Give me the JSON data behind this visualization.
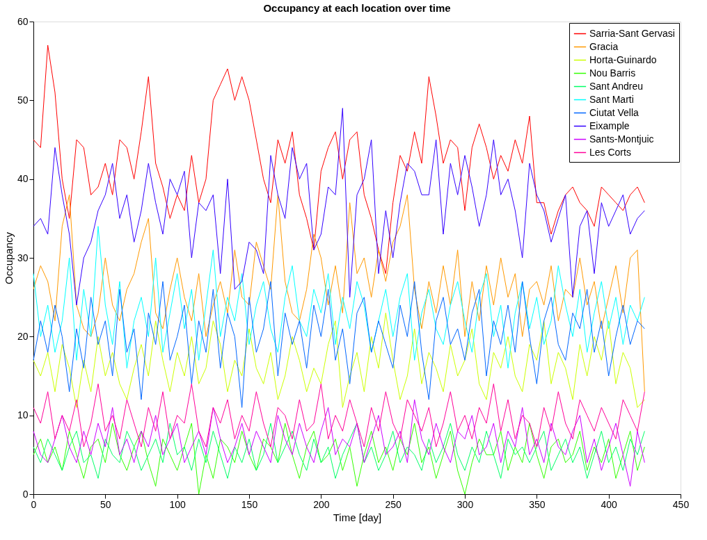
{
  "chart_data": {
    "type": "line",
    "title": "Occupancy at each location over time",
    "xlabel": "Time [day]",
    "ylabel": "Occupancy",
    "x": [
      0,
      5,
      10,
      15,
      20,
      25,
      30,
      35,
      40,
      45,
      50,
      55,
      60,
      65,
      70,
      75,
      80,
      85,
      90,
      95,
      100,
      105,
      110,
      115,
      120,
      125,
      130,
      135,
      140,
      145,
      150,
      155,
      160,
      165,
      170,
      175,
      180,
      185,
      190,
      195,
      200,
      205,
      210,
      215,
      220,
      225,
      230,
      235,
      240,
      245,
      250,
      255,
      260,
      265,
      270,
      275,
      280,
      285,
      290,
      295,
      300,
      305,
      310,
      315,
      320,
      325,
      330,
      335,
      340,
      345,
      350,
      355,
      360,
      365,
      370,
      375,
      380,
      385,
      390,
      395,
      400,
      405,
      410,
      415,
      420,
      425
    ],
    "xlim": [
      0,
      450
    ],
    "xticks": [
      0,
      50,
      100,
      150,
      200,
      250,
      300,
      350,
      400,
      450
    ],
    "ylim": [
      0,
      60
    ],
    "yticks": [
      0,
      10,
      20,
      30,
      40,
      50,
      60
    ],
    "grid": false,
    "legend": "top right",
    "line_style": "solid",
    "marker": "none",
    "series": [
      {
        "name": "Sarria-Sant Gervasi",
        "color": "#ff0000",
        "values": [
          45,
          44,
          57,
          51,
          40,
          35,
          45,
          44,
          38,
          39,
          42,
          38,
          45,
          44,
          40,
          46,
          53,
          42,
          39,
          35,
          38,
          36,
          43,
          37,
          40,
          50,
          52,
          54,
          50,
          53,
          50,
          45,
          40,
          37,
          45,
          42,
          46,
          38,
          35,
          31,
          41,
          44,
          46,
          40,
          45,
          46,
          38,
          35,
          31,
          28,
          37,
          43,
          41,
          46,
          42,
          53,
          48,
          42,
          45,
          44,
          36,
          44,
          47,
          44,
          40,
          43,
          41,
          45,
          42,
          48,
          37,
          37,
          33,
          36,
          38,
          39,
          37,
          36,
          34,
          39,
          38,
          37,
          36,
          38,
          39,
          37
        ]
      },
      {
        "name": "Gracia",
        "color": "#ff9900",
        "values": [
          26,
          29,
          27,
          22,
          34,
          38,
          24,
          21,
          20,
          23,
          30,
          24,
          22,
          26,
          28,
          32,
          35,
          23,
          21,
          26,
          30,
          25,
          22,
          28,
          20,
          24,
          27,
          23,
          31,
          25,
          24,
          32,
          29,
          26,
          38,
          27,
          23,
          22,
          26,
          33,
          30,
          24,
          29,
          23,
          37,
          28,
          30,
          25,
          31,
          27,
          32,
          34,
          38,
          26,
          21,
          27,
          23,
          29,
          24,
          31,
          20,
          27,
          22,
          29,
          24,
          30,
          25,
          28,
          20,
          26,
          27,
          24,
          29,
          22,
          26,
          25,
          30,
          24,
          27,
          21,
          25,
          29,
          23,
          30,
          31,
          13
        ]
      },
      {
        "name": "Horta-Guinardo",
        "color": "#ccff00",
        "values": [
          17,
          15,
          18,
          13,
          19,
          16,
          11,
          17,
          13,
          20,
          15,
          18,
          14,
          12,
          16,
          19,
          15,
          22,
          17,
          13,
          18,
          15,
          20,
          14,
          16,
          22,
          19,
          13,
          17,
          15,
          21,
          16,
          14,
          18,
          12,
          15,
          20,
          17,
          13,
          16,
          14,
          19,
          22,
          11,
          15,
          18,
          13,
          20,
          16,
          23,
          17,
          12,
          15,
          21,
          14,
          18,
          16,
          13,
          19,
          15,
          17,
          21,
          14,
          12,
          18,
          16,
          20,
          15,
          13,
          19,
          17,
          22,
          14,
          18,
          16,
          12,
          19,
          15,
          20,
          17,
          22,
          14,
          18,
          16,
          11,
          12
        ]
      },
      {
        "name": "Nou Barris",
        "color": "#33ff00",
        "values": [
          5,
          7,
          4,
          6,
          3,
          8,
          5,
          2,
          6,
          7,
          4,
          9,
          5,
          3,
          6,
          8,
          4,
          1,
          7,
          5,
          3,
          6,
          9,
          0,
          5,
          2,
          7,
          6,
          4,
          8,
          5,
          3,
          7,
          6,
          4,
          9,
          5,
          2,
          6,
          8,
          4,
          5,
          7,
          3,
          6,
          1,
          5,
          8,
          4,
          6,
          3,
          7,
          5,
          9,
          4,
          6,
          2,
          5,
          8,
          3,
          0,
          4,
          7,
          5,
          5,
          8,
          3,
          6,
          4,
          9,
          5,
          2,
          6,
          7,
          4,
          5,
          8,
          3,
          6,
          4,
          7,
          2,
          5,
          8,
          3,
          6
        ]
      },
      {
        "name": "Sant Andreu",
        "color": "#00ff66",
        "values": [
          6,
          4,
          7,
          5,
          3,
          6,
          8,
          4,
          5,
          2,
          7,
          5,
          4,
          8,
          6,
          3,
          5,
          7,
          4,
          9,
          5,
          6,
          3,
          7,
          4,
          8,
          5,
          2,
          6,
          4,
          7,
          3,
          5,
          9,
          4,
          6,
          8,
          5,
          3,
          7,
          4,
          6,
          2,
          5,
          7,
          9,
          4,
          6,
          3,
          5,
          8,
          4,
          6,
          5,
          3,
          7,
          4,
          6,
          9,
          5,
          3,
          6,
          4,
          8,
          5,
          2,
          7,
          5,
          6,
          4,
          6,
          8,
          3,
          5,
          7,
          4,
          6,
          2,
          5,
          8,
          4,
          6,
          3,
          7,
          5,
          8
        ]
      },
      {
        "name": "Sant Marti",
        "color": "#00ffff",
        "values": [
          28,
          20,
          24,
          18,
          22,
          30,
          17,
          26,
          20,
          34,
          24,
          19,
          27,
          16,
          22,
          25,
          20,
          30,
          18,
          23,
          28,
          21,
          26,
          17,
          24,
          31,
          20,
          25,
          22,
          28,
          19,
          24,
          27,
          21,
          18,
          25,
          29,
          22,
          20,
          26,
          23,
          28,
          19,
          25,
          21,
          27,
          24,
          18,
          22,
          26,
          20,
          25,
          28,
          17,
          23,
          26,
          21,
          19,
          24,
          27,
          22,
          18,
          25,
          28,
          20,
          24,
          16,
          23,
          27,
          21,
          25,
          19,
          22,
          29,
          24,
          20,
          26,
          18,
          23,
          27,
          21,
          25,
          19,
          24,
          22,
          25
        ]
      },
      {
        "name": "Ciutat Vella",
        "color": "#0066ff",
        "values": [
          17,
          22,
          18,
          24,
          20,
          13,
          21,
          16,
          25,
          19,
          22,
          15,
          26,
          18,
          21,
          12,
          23,
          19,
          27,
          17,
          20,
          24,
          14,
          22,
          18,
          26,
          16,
          23,
          20,
          11,
          25,
          18,
          21,
          27,
          15,
          23,
          19,
          22,
          16,
          24,
          20,
          26,
          17,
          21,
          14,
          23,
          25,
          18,
          22,
          19,
          16,
          24,
          20,
          27,
          18,
          12,
          22,
          25,
          19,
          21,
          17,
          23,
          26,
          15,
          22,
          19,
          24,
          18,
          27,
          20,
          14,
          22,
          25,
          19,
          17,
          23,
          21,
          26,
          18,
          22,
          15,
          20,
          24,
          19,
          22,
          21
        ]
      },
      {
        "name": "Eixample",
        "color": "#3300ff",
        "values": [
          34,
          35,
          33,
          44,
          38,
          33,
          24,
          30,
          32,
          36,
          38,
          42,
          35,
          38,
          32,
          36,
          42,
          37,
          33,
          40,
          38,
          41,
          30,
          37,
          36,
          38,
          28,
          40,
          26,
          27,
          32,
          31,
          28,
          43,
          38,
          35,
          44,
          40,
          42,
          31,
          33,
          39,
          38,
          49,
          25,
          38,
          40,
          45,
          28,
          36,
          30,
          37,
          42,
          41,
          38,
          38,
          45,
          33,
          42,
          38,
          43,
          39,
          34,
          38,
          45,
          38,
          40,
          36,
          30,
          42,
          38,
          36,
          32,
          35,
          38,
          25,
          34,
          36,
          28,
          37,
          34,
          36,
          38,
          33,
          35,
          36
        ]
      },
      {
        "name": "Sants-Montjuic",
        "color": "#cc00ff",
        "values": [
          8,
          5,
          4,
          7,
          10,
          6,
          4,
          8,
          5,
          9,
          6,
          11,
          5,
          7,
          4,
          8,
          6,
          10,
          5,
          7,
          9,
          4,
          6,
          8,
          5,
          11,
          7,
          4,
          6,
          9,
          5,
          8,
          6,
          4,
          10,
          7,
          5,
          9,
          6,
          4,
          8,
          11,
          5,
          7,
          6,
          9,
          4,
          7,
          10,
          5,
          6,
          8,
          4,
          12,
          7,
          5,
          9,
          6,
          4,
          8,
          7,
          10,
          5,
          6,
          9,
          4,
          8,
          6,
          11,
          5,
          7,
          4,
          9,
          6,
          5,
          8,
          10,
          4,
          7,
          3,
          6,
          9,
          5,
          1,
          8,
          4
        ]
      },
      {
        "name": "Les Corts",
        "color": "#ff0099",
        "values": [
          11,
          9,
          13,
          7,
          10,
          8,
          12,
          6,
          9,
          14,
          8,
          10,
          7,
          12,
          9,
          6,
          11,
          8,
          13,
          7,
          10,
          9,
          14,
          8,
          6,
          11,
          9,
          12,
          7,
          10,
          8,
          13,
          9,
          6,
          11,
          10,
          7,
          12,
          8,
          9,
          14,
          7,
          10,
          8,
          12,
          9,
          6,
          11,
          8,
          13,
          9,
          7,
          12,
          10,
          8,
          11,
          6,
          9,
          13,
          8,
          10,
          7,
          11,
          9,
          14,
          8,
          12,
          7,
          10,
          9,
          6,
          11,
          8,
          13,
          9,
          7,
          12,
          10,
          8,
          11,
          9,
          7,
          12,
          10,
          8,
          13
        ]
      }
    ]
  }
}
